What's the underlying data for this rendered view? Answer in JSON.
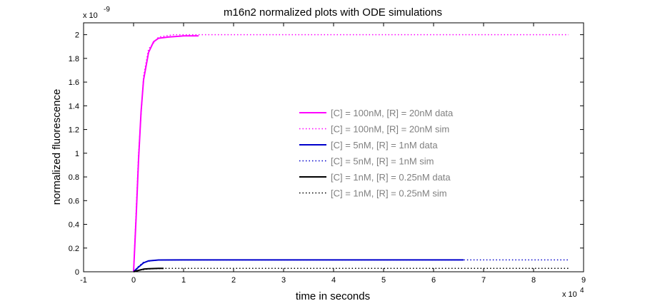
{
  "chart_data": {
    "type": "line",
    "title": "m16n2 normalized plots with ODE simulations",
    "xlabel": "time in seconds",
    "ylabel": "normalized fluorescence",
    "x_multiplier": "x 10",
    "x_multiplier_exp": "4",
    "y_multiplier": "x 10",
    "y_multiplier_exp": "-9",
    "xlim": [
      -1,
      9
    ],
    "ylim": [
      0,
      2.1
    ],
    "xticks": [
      -1,
      0,
      1,
      2,
      3,
      4,
      5,
      6,
      7,
      8,
      9
    ],
    "xtick_labels": [
      "-1",
      "0",
      "1",
      "2",
      "3",
      "4",
      "5",
      "6",
      "7",
      "8",
      "9"
    ],
    "yticks": [
      0,
      0.2,
      0.4,
      0.6,
      0.8,
      1,
      1.2,
      1.4,
      1.6,
      1.8,
      2
    ],
    "ytick_labels": [
      "0",
      "0.2",
      "0.4",
      "0.6",
      "0.8",
      "1",
      "1.2",
      "1.4",
      "1.6",
      "1.8",
      "2"
    ],
    "grid": false,
    "legend_position": "center-right",
    "series": [
      {
        "name": "[C] = 100nM, [R] = 20nM data",
        "style": "solid",
        "color": "#ff00ff",
        "x": [
          0,
          0.05,
          0.1,
          0.15,
          0.2,
          0.3,
          0.4,
          0.5,
          0.7,
          1.0,
          1.3
        ],
        "y": [
          0,
          0.45,
          0.95,
          1.35,
          1.62,
          1.85,
          1.94,
          1.97,
          1.98,
          1.99,
          1.99
        ]
      },
      {
        "name": "[C] = 100nM, [R] = 20nM sim",
        "style": "dotted",
        "color": "#ff00ff",
        "x": [
          0,
          0.1,
          0.2,
          0.3,
          0.5,
          0.8,
          1.3,
          3,
          6,
          8.7
        ],
        "y": [
          0,
          1.0,
          1.65,
          1.88,
          1.98,
          2.0,
          2.0,
          2.0,
          2.0,
          2.0
        ]
      },
      {
        "name": "[C] = 5nM, [R] = 1nM data",
        "style": "solid",
        "color": "#0000cc",
        "x": [
          0,
          0.1,
          0.2,
          0.3,
          0.5,
          1,
          3,
          6.6
        ],
        "y": [
          0,
          0.04,
          0.075,
          0.092,
          0.099,
          0.1,
          0.1,
          0.1
        ]
      },
      {
        "name": "[C] = 5nM, [R] = 1nM sim",
        "style": "dotted",
        "color": "#0000cc",
        "x": [
          0,
          0.1,
          0.2,
          0.4,
          0.8,
          2,
          5,
          8.7
        ],
        "y": [
          0,
          0.045,
          0.08,
          0.097,
          0.1,
          0.1,
          0.1,
          0.1
        ]
      },
      {
        "name": "[C] = 1nM, [R] = 0.25nM data",
        "style": "solid",
        "color": "#000000",
        "x": [
          0,
          0.1,
          0.2,
          0.3,
          0.5,
          0.6
        ],
        "y": [
          0,
          0.012,
          0.022,
          0.026,
          0.028,
          0.028
        ]
      },
      {
        "name": "[C] = 1nM, [R] = 0.25nM sim",
        "style": "dotted",
        "color": "#000000",
        "x": [
          0,
          0.1,
          0.3,
          0.6,
          1,
          3,
          6,
          8.7
        ],
        "y": [
          0,
          0.012,
          0.024,
          0.028,
          0.028,
          0.028,
          0.028,
          0.028
        ]
      }
    ]
  }
}
